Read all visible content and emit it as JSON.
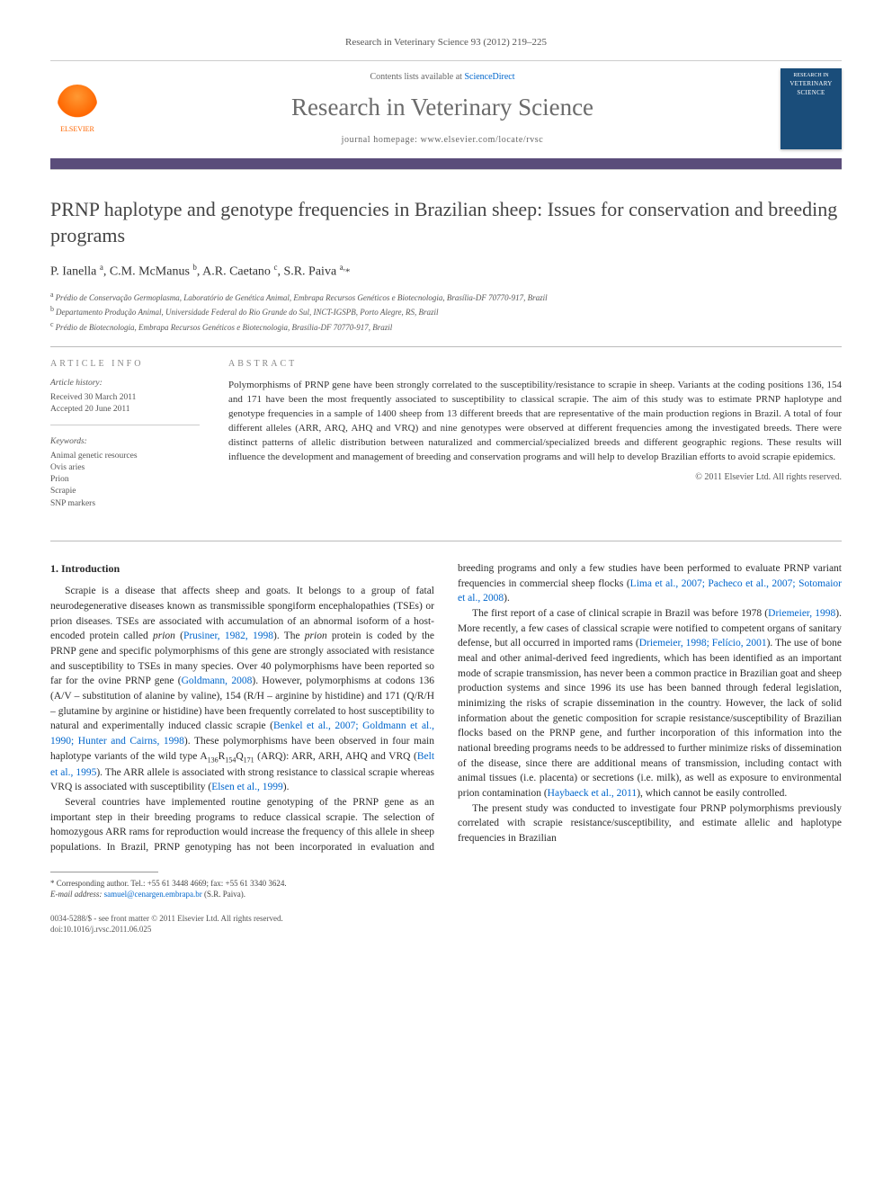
{
  "citation": "Research in Veterinary Science 93 (2012) 219–225",
  "header": {
    "contents_prefix": "Contents lists available at ",
    "contents_link": "ScienceDirect",
    "journal_name": "Research in Veterinary Science",
    "homepage_prefix": "journal homepage: ",
    "homepage_url": "www.elsevier.com/locate/rvsc",
    "publisher": "ELSEVIER",
    "cover_top": "RESEARCH IN",
    "cover_title": "VETERINARY SCIENCE"
  },
  "title": "PRNP haplotype and genotype frequencies in Brazilian sheep: Issues for conservation and breeding programs",
  "authors_html": "P. Ianella <sup>a</sup>, C.M. McManus <sup>b</sup>, A.R. Caetano <sup>c</sup>, S.R. Paiva <sup>a,</sup><span class='corr'>*</span>",
  "affiliations": [
    {
      "sup": "a",
      "text": "Prédio de Conservação Germoplasma, Laboratório de Genética Animal, Embrapa Recursos Genéticos e Biotecnologia, Brasília-DF 70770-917, Brazil"
    },
    {
      "sup": "b",
      "text": "Departamento Produção Animal, Universidade Federal do Rio Grande do Sul, INCT-IGSPB, Porto Alegre, RS, Brazil"
    },
    {
      "sup": "c",
      "text": "Prédio de Biotecnologia, Embrapa Recursos Genéticos e Biotecnologia, Brasília-DF 70770-917, Brazil"
    }
  ],
  "info": {
    "heading": "ARTICLE INFO",
    "history_label": "Article history:",
    "received": "Received 30 March 2011",
    "accepted": "Accepted 20 June 2011",
    "keywords_label": "Keywords:",
    "keywords": [
      "Animal genetic resources",
      "Ovis aries",
      "Prion",
      "Scrapie",
      "SNP markers"
    ]
  },
  "abstract": {
    "heading": "ABSTRACT",
    "text": "Polymorphisms of PRNP gene have been strongly correlated to the susceptibility/resistance to scrapie in sheep. Variants at the coding positions 136, 154 and 171 have been the most frequently associated to susceptibility to classical scrapie. The aim of this study was to estimate PRNP haplotype and genotype frequencies in a sample of 1400 sheep from 13 different breeds that are representative of the main production regions in Brazil. A total of four different alleles (ARR, ARQ, AHQ and VRQ) and nine genotypes were observed at different frequencies among the investigated breeds. There were distinct patterns of allelic distribution between naturalized and commercial/specialized breeds and different geographic regions. These results will influence the development and management of breeding and conservation programs and will help to develop Brazilian efforts to avoid scrapie epidemics.",
    "copyright": "© 2011 Elsevier Ltd. All rights reserved."
  },
  "section1_heading": "1. Introduction",
  "paragraphs": {
    "p1_a": "Scrapie is a disease that affects sheep and goats. It belongs to a group of fatal neurodegenerative diseases known as transmissible spongiform encephalopathies (TSEs) or prion diseases. TSEs are associated with accumulation of an abnormal isoform of a host-encoded protein called ",
    "p1_b": " (",
    "p1_ref1": "Prusiner, 1982, 1998",
    "p1_c": "). The ",
    "p1_d": " protein is coded by the PRNP gene and specific polymorphisms of this gene are strongly associated with resistance and susceptibility to TSEs in many species. Over 40 polymorphisms have been reported so far for the ovine PRNP gene (",
    "p1_ref2": "Goldmann, 2008",
    "p1_e": "). However, polymorphisms at codons 136 (A/V – substitution of alanine by valine), 154 (R/H – arginine by histidine) and 171 (Q/R/H – glutamine by arginine or histidine) have been frequently correlated to host susceptibility to natural and experimentally induced classic scrapie (",
    "p1_ref3": "Benkel et al., 2007; Goldmann et al., 1990; Hunter and Cairns, 1998",
    "p1_f": "). These polymorphisms have been observed in four main haplotype variants of the wild type A",
    "p1_g": "R",
    "p1_h": "Q",
    "p1_i": " (ARQ): ARR, ARH, AHQ and VRQ (",
    "p1_ref4": "Belt et al., 1995",
    "p1_j": "). The ARR allele is associated with strong resistance to classical scrapie whereas VRQ is associated with susceptibility (",
    "p1_ref5": "Elsen et al., 1999",
    "p1_k": ").",
    "p2_a": "Several countries have implemented routine genotyping of the PRNP gene as an important step in their breeding programs to reduce classical scrapie. The selection of homozygous ARR rams for ",
    "p2_b": "reproduction would increase the frequency of this allele in sheep populations. In Brazil, PRNP genotyping has not been incorporated in evaluation and breeding programs and only a few studies have been performed to evaluate PRNP variant frequencies in commercial sheep flocks (",
    "p2_ref1": "Lima et al., 2007; Pacheco et al., 2007; Sotomaior et al., 2008",
    "p2_c": ").",
    "p3_a": "The first report of a case of clinical scrapie in Brazil was before 1978 (",
    "p3_ref1": "Driemeier, 1998",
    "p3_b": "). More recently, a few cases of classical scrapie were notified to competent organs of sanitary defense, but all occurred in imported rams (",
    "p3_ref2": "Driemeier, 1998; Felício, 2001",
    "p3_c": "). The use of bone meal and other animal-derived feed ingredients, which has been identified as an important mode of scrapie transmission, has never been a common practice in Brazilian goat and sheep production systems and since 1996 its use has been banned through federal legislation, minimizing the risks of scrapie dissemination in the country. However, the lack of solid information about the genetic composition for scrapie resistance/susceptibility of Brazilian flocks based on the PRNP gene, and further incorporation of this information into the national breeding programs needs to be addressed to further minimize risks of dissemination of the disease, since there are additional means of transmission, including contact with animal tissues (i.e. placenta) or secretions (i.e. milk), as well as exposure to environmental prion contamination (",
    "p3_ref3": "Haybaeck et al., 2011",
    "p3_d": "), which cannot be easily controlled.",
    "p4": "The present study was conducted to investigate four PRNP polymorphisms previously correlated with scrapie resistance/susceptibility, and estimate allelic and haplotype frequencies in Brazilian"
  },
  "codons": {
    "c136": "136",
    "c154": "154",
    "c171": "171"
  },
  "prion_word": "prion",
  "footnotes": {
    "corr": "* Corresponding author. Tel.: +55 61 3448 4669; fax: +55 61 3340 3624.",
    "email_label": "E-mail address:",
    "email": "samuel@cenargen.embrapa.br",
    "email_suffix": " (S.R. Paiva)."
  },
  "bottom": {
    "issn": "0034-5288/$ - see front matter © 2011 Elsevier Ltd. All rights reserved.",
    "doi": "doi:10.1016/j.rvsc.2011.06.025"
  },
  "colors": {
    "link": "#0066cc",
    "bar": "#5a4d7a",
    "cover": "#1a4d7a",
    "logo": "#ff6600"
  }
}
